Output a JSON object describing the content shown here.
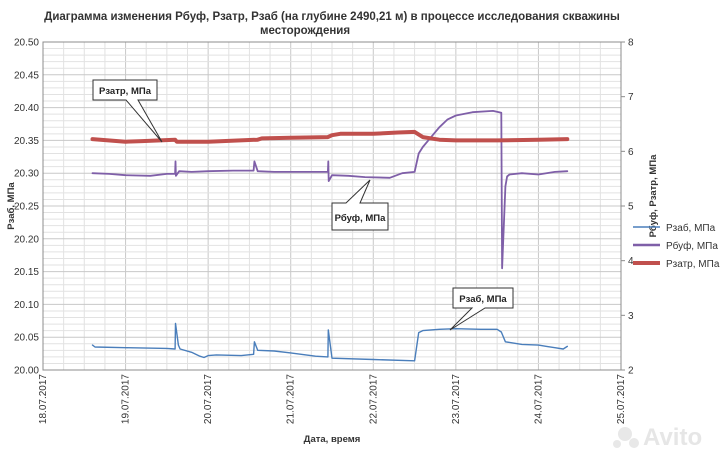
{
  "chart_data": {
    "type": "line",
    "title_lines": [
      "Диаграмма изменения Рбуф, Рзатр, Рзаб (на глубине 2490,21 м) в процессе исследования  скважины",
      "месторождения"
    ],
    "xlabel": "Дата, время",
    "ylabel_left": "Рзаб, МПа",
    "ylabel_right": "Рбуф, Рзатр, МПа",
    "x_ticks": [
      "18.07.2017",
      "19.07.2017",
      "20.07.2017",
      "21.07.2017",
      "22.07.2017",
      "23.07.2017",
      "24.07.2017",
      "25.07.2017"
    ],
    "xlim": [
      0,
      7
    ],
    "y_left_ticks": [
      "20.00",
      "20.05",
      "20.10",
      "20.15",
      "20.20",
      "20.25",
      "20.30",
      "20.35",
      "20.40",
      "20.45",
      "20.50"
    ],
    "ylim_left": [
      20.0,
      20.5
    ],
    "y_right_ticks": [
      "2",
      "3",
      "4",
      "5",
      "6",
      "7",
      "8"
    ],
    "ylim_right": [
      2,
      8
    ],
    "grid": true,
    "legend_position": "right",
    "series": [
      {
        "name": "Рзаб, МПа",
        "axis": "left",
        "color": "#4a7ebb",
        "width": 1.4,
        "x": [
          0.6,
          0.63,
          1.0,
          1.5,
          1.6,
          1.605,
          1.64,
          1.66,
          1.8,
          1.9,
          1.95,
          2.0,
          2.1,
          2.4,
          2.55,
          2.56,
          2.6,
          2.8,
          3.0,
          3.3,
          3.45,
          3.455,
          3.5,
          4.0,
          4.5,
          4.55,
          4.6,
          4.8,
          5.0,
          5.3,
          5.5,
          5.55,
          5.6,
          5.8,
          6.0,
          6.1,
          6.2,
          6.3,
          6.35
        ],
        "y": [
          20.038,
          20.035,
          20.034,
          20.033,
          20.032,
          20.071,
          20.038,
          20.032,
          20.027,
          20.021,
          20.019,
          20.022,
          20.023,
          20.022,
          20.024,
          20.043,
          20.03,
          20.029,
          20.026,
          20.021,
          20.02,
          20.061,
          20.018,
          20.016,
          20.014,
          20.057,
          20.06,
          20.062,
          20.063,
          20.062,
          20.062,
          20.058,
          20.043,
          20.039,
          20.038,
          20.036,
          20.034,
          20.032,
          20.036
        ]
      },
      {
        "name": "Рбуф, МПа",
        "axis": "left",
        "color": "#7f5fa8",
        "width": 1.8,
        "x": [
          0.6,
          0.8,
          1.0,
          1.3,
          1.5,
          1.6,
          1.605,
          1.61,
          1.65,
          1.8,
          2.0,
          2.3,
          2.55,
          2.56,
          2.6,
          2.8,
          3.0,
          3.3,
          3.45,
          3.455,
          3.46,
          3.5,
          3.7,
          3.9,
          4.2,
          4.35,
          4.5,
          4.55,
          4.6,
          4.7,
          4.8,
          4.9,
          5.0,
          5.2,
          5.45,
          5.55,
          5.56,
          5.6,
          5.62,
          5.65,
          5.8,
          6.0,
          6.2,
          6.35
        ],
        "y": [
          20.3,
          20.299,
          20.297,
          20.296,
          20.299,
          20.299,
          20.318,
          20.296,
          20.303,
          20.302,
          20.303,
          20.304,
          20.304,
          20.318,
          20.303,
          20.302,
          20.302,
          20.302,
          20.302,
          20.318,
          20.288,
          20.297,
          20.296,
          20.294,
          20.293,
          20.3,
          20.302,
          20.33,
          20.34,
          20.355,
          20.37,
          20.382,
          20.388,
          20.393,
          20.395,
          20.392,
          20.155,
          20.28,
          20.295,
          20.298,
          20.3,
          20.298,
          20.302,
          20.303
        ]
      },
      {
        "name": "Рзатр, МПа",
        "axis": "left",
        "color": "#c0504d",
        "width": 4,
        "x": [
          0.6,
          1.0,
          1.2,
          1.6,
          1.62,
          2.0,
          2.6,
          2.65,
          3.0,
          3.45,
          3.5,
          3.6,
          4.0,
          4.3,
          4.5,
          4.6,
          4.8,
          5.0,
          5.5,
          6.0,
          6.35
        ],
        "y": [
          20.352,
          20.348,
          20.349,
          20.351,
          20.348,
          20.348,
          20.351,
          20.353,
          20.354,
          20.355,
          20.358,
          20.36,
          20.36,
          20.362,
          20.363,
          20.355,
          20.351,
          20.35,
          20.35,
          20.351,
          20.352
        ]
      }
    ],
    "callouts": [
      {
        "text": "Рзатр, МПа"
      },
      {
        "text": "Рбуф, МПа"
      },
      {
        "text": "Рзаб, МПа"
      }
    ],
    "watermark": "Avito"
  }
}
